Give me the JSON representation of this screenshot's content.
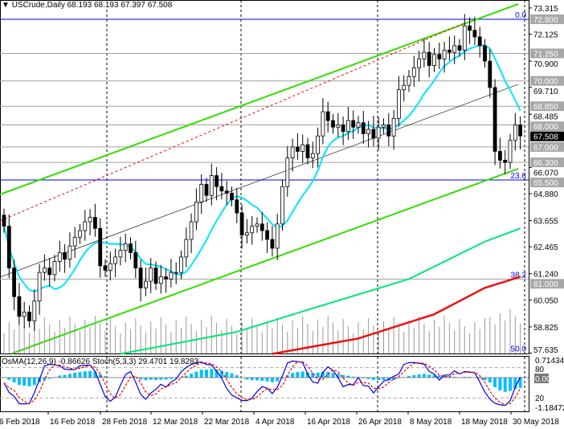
{
  "header": {
    "symbol": "USCrude,Daily",
    "ohlc": "68.193 68.193 67.397 67.508"
  },
  "indicator_header": {
    "osma": "OsMA(12,26,9) -0.86626",
    "stoch": "Stoch(5,3,3) 29.4701 19.8283"
  },
  "colors": {
    "bull_candle": "#ffffff",
    "bear_candle": "#000000",
    "fast_ma": "#00e5ff",
    "mid_ma": "#00e676",
    "slow_ma": "#ee1111",
    "channel": "#33dd00",
    "fib": "#0000ee",
    "level": "#a0a0a0",
    "osma": "#00bfff",
    "stoch_main": "#0000dd",
    "stoch_signal": "#ee0000",
    "volume": "#999999"
  },
  "chart_data": {
    "type": "candlestick",
    "price_axis": {
      "ticks": [
        "73.315",
        "72.125",
        "70.900",
        "69.710",
        "68.485",
        "66.070",
        "64.880",
        "63.655",
        "62.465",
        "61.240",
        "60.050",
        "58.825",
        "57.635"
      ],
      "current": "67.508",
      "range": [
        57.635,
        73.6
      ]
    },
    "date_labels": [
      "6 Feb 2018",
      "16 Feb 2018",
      "28 Feb 2018",
      "12 Mar 2018",
      "22 Mar 2018",
      "4 Apr 2018",
      "16 Apr 2018",
      "26 Apr 2018",
      "8 May 2018",
      "18 May 2018",
      "30 May 2018"
    ],
    "closes": [
      63.4,
      61.5,
      60.2,
      59.3,
      59.5,
      59.1,
      60.0,
      61.3,
      61.5,
      61.2,
      61.8,
      62.2,
      61.9,
      62.5,
      62.9,
      63.2,
      63.6,
      63.8,
      63.3,
      61.6,
      61.4,
      61.7,
      62.0,
      62.3,
      62.6,
      62.2,
      61.5,
      60.6,
      60.9,
      61.5,
      60.8,
      61.1,
      61.0,
      61.3,
      61.3,
      62.0,
      62.8,
      63.6,
      64.5,
      65.3,
      64.8,
      65.7,
      65.2,
      65.0,
      64.9,
      64.6,
      64.0,
      63.0,
      63.1,
      63.4,
      63.5,
      63.2,
      62.8,
      62.4,
      63.5,
      65.2,
      66.5,
      67.0,
      66.8,
      67.1,
      66.5,
      66.7,
      67.5,
      68.6,
      68.2,
      67.9,
      68.0,
      67.7,
      68.2,
      67.9,
      68.1,
      67.6,
      67.8,
      67.4,
      67.9,
      68.0,
      67.5,
      68.3,
      69.6,
      69.8,
      70.2,
      70.6,
      71.0,
      71.3,
      70.7,
      71.2,
      71.0,
      71.4,
      71.3,
      71.6,
      71.4,
      72.5,
      72.3,
      72.0,
      71.6,
      70.9,
      69.7,
      66.8,
      66.4,
      66.3,
      67.3,
      68.0,
      67.5
    ],
    "mid_ma_points": [
      [
        23,
        57.6
      ],
      [
        46,
        58.6
      ],
      [
        60,
        59.6
      ],
      [
        80,
        61.0
      ],
      [
        95,
        62.7
      ],
      [
        102,
        63.3
      ]
    ],
    "slow_ma_points": [
      [
        53,
        57.6
      ],
      [
        70,
        58.3
      ],
      [
        85,
        59.4
      ],
      [
        95,
        60.6
      ],
      [
        102,
        61.1
      ]
    ],
    "levels": [
      {
        "price": 72.8,
        "label": "72.800",
        "fib": "0.0",
        "color": "#0000ee"
      },
      {
        "price": 71.25,
        "label": "71.250"
      },
      {
        "price": 70.0,
        "label": "70.000"
      },
      {
        "price": 68.85,
        "label": "68.850"
      },
      {
        "price": 68.0,
        "label": "68.000"
      },
      {
        "price": 67.0,
        "label": "67.000"
      },
      {
        "price": 66.3,
        "label": "66.300"
      },
      {
        "price": 65.5,
        "label": "65.500",
        "fib": "23.6",
        "color": "#0000ee"
      },
      {
        "price": 61.0,
        "label": "61.000",
        "fib": "38.2"
      },
      {
        "price": 57.635,
        "fib": "50.0"
      }
    ],
    "indicator_axis": {
      "max": "0.71434",
      "zero": "0.00",
      "min": "-1.18472",
      "stoch_high": "80",
      "stoch_low": "20"
    }
  }
}
